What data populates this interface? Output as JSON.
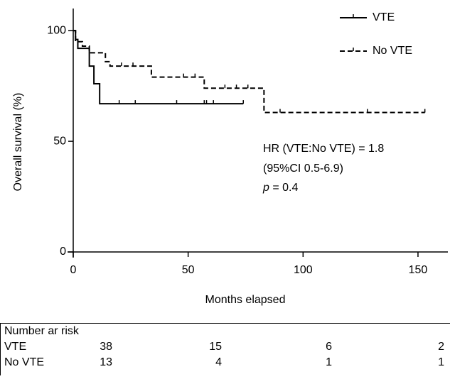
{
  "chart_data": {
    "type": "km",
    "xlabel": "Months elapsed",
    "ylabel": "Overall survival (%)",
    "xlim": [
      0,
      163
    ],
    "ylim": [
      0,
      110
    ],
    "xticks": [
      0,
      50,
      100,
      150
    ],
    "yticks": [
      0,
      50,
      100
    ],
    "legend": "top-right",
    "series": [
      {
        "name": "VTE",
        "color": "#000000",
        "dash": false,
        "x": [
          0,
          1,
          2,
          7,
          9,
          11.5,
          74
        ],
        "values": [
          100,
          96,
          92,
          84,
          76,
          67,
          67
        ],
        "censor_x": [
          20,
          27,
          45,
          57,
          58,
          61,
          74
        ],
        "censor_y": [
          67,
          67,
          67,
          67,
          67,
          67,
          67
        ]
      },
      {
        "name": "No VTE",
        "color": "#000000",
        "dash": true,
        "x": [
          0,
          1,
          4,
          7,
          14,
          16,
          34,
          57,
          83,
          153
        ],
        "values": [
          100,
          95,
          93,
          90,
          86,
          84,
          79,
          74,
          63,
          63
        ],
        "censor_x": [
          21,
          26,
          48,
          53,
          66,
          71,
          76,
          90,
          128,
          153
        ],
        "censor_y": [
          84,
          84,
          79,
          79,
          74,
          74,
          74,
          63,
          63,
          63
        ]
      }
    ],
    "annotation_lines": [
      "HR (VTE:No VTE) = 1.8",
      "(95%CI 0.5-6.9)"
    ],
    "p_symbol": "p",
    "p_text": "= 0.4",
    "risk_table": {
      "title": "Number ar risk",
      "rows": [
        {
          "name": "VTE",
          "values": [
            38,
            15,
            6,
            2
          ]
        },
        {
          "name": "No VTE",
          "values": [
            13,
            4,
            1,
            1
          ]
        }
      ]
    }
  }
}
